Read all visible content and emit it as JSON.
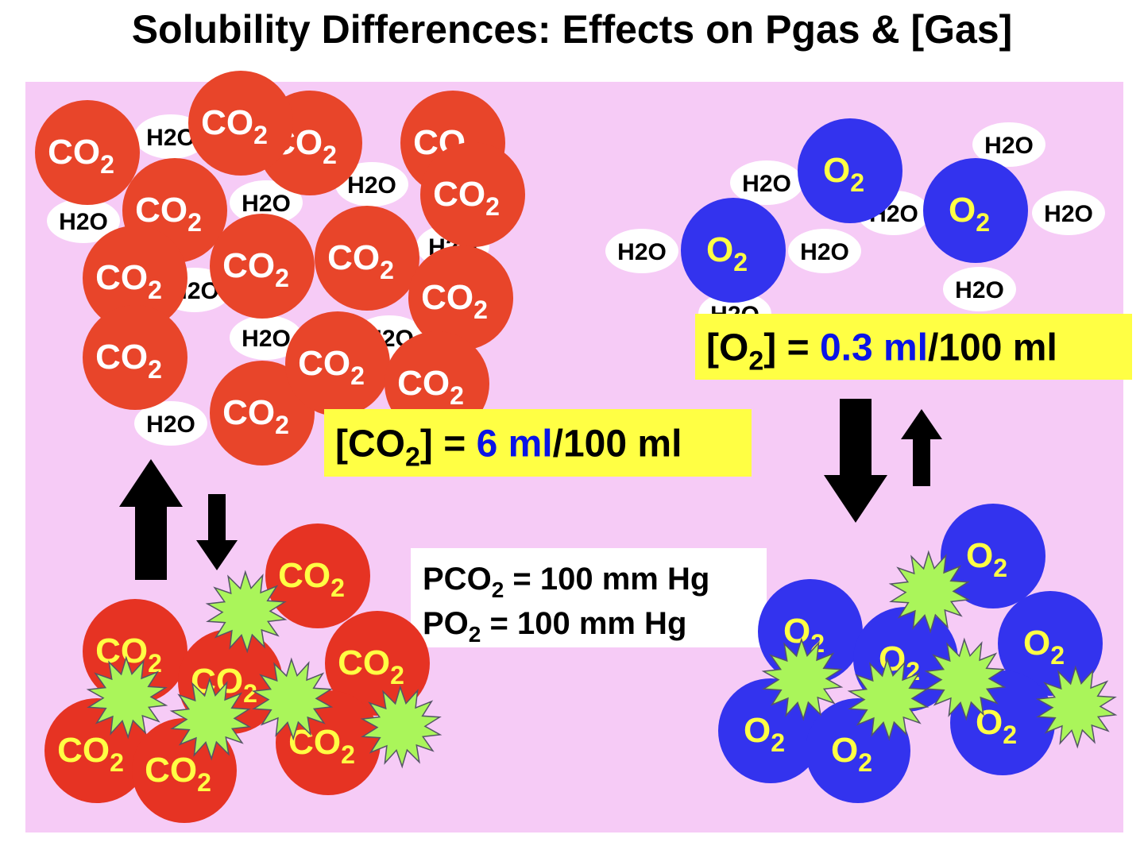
{
  "title": "Solubility Differences: Effects on Pgas & [Gas]",
  "molecules": {
    "co2": {
      "base": "CO",
      "sub": "2"
    },
    "o2": {
      "base": "O",
      "sub": "2"
    },
    "h2o": "H2O"
  },
  "co2_concentration": {
    "prefix": "[CO",
    "sub": "2",
    "mid": "] = ",
    "value": "6 ml",
    "suffix": "/100 ml"
  },
  "o2_concentration": {
    "prefix": "[O",
    "sub": "2",
    "mid": "] = ",
    "value": "0.3 ml",
    "suffix": "/100 ml"
  },
  "pressures": [
    {
      "prefix": "PCO",
      "sub": "2",
      "rest": " = 100 mm Hg"
    },
    {
      "prefix": "PO",
      "sub": "2",
      "rest": " = 100 mm Hg"
    }
  ],
  "colors": {
    "background": "#f6cbf6",
    "co2_dissolved": "#e8452a",
    "co2_gas": "#e63323",
    "o2": "#3333ee",
    "gas_label": "#ffff44",
    "starburst": "#aaf55a",
    "highlight_box": "#ffff44",
    "value_text": "#0a14e6"
  }
}
